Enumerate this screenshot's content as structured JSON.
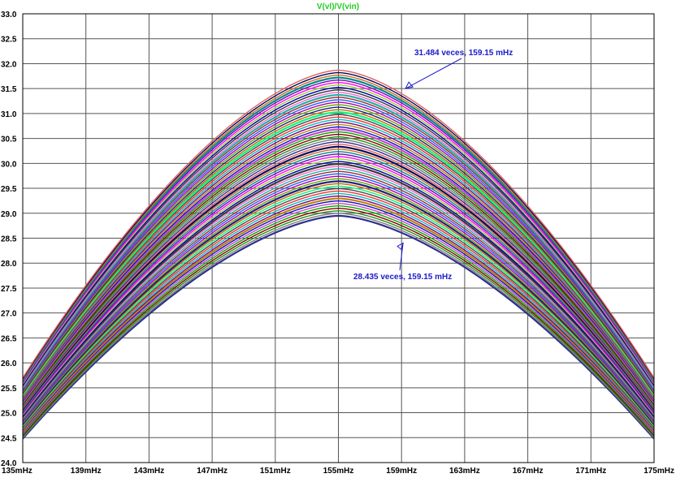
{
  "chart_data": {
    "type": "line",
    "title": "V(vl)/V(vin)",
    "x_unit": "mHz",
    "xlim": [
      135,
      175
    ],
    "ylim": [
      24.0,
      33.0
    ],
    "x_tick_labels": [
      "135mHz",
      "139mHz",
      "143mHz",
      "147mHz",
      "151mHz",
      "155mHz",
      "159mHz",
      "163mHz",
      "167mHz",
      "171mHz",
      "175mHz"
    ],
    "y_tick_labels": [
      "24.0",
      "24.5",
      "25.0",
      "25.5",
      "26.0",
      "26.5",
      "27.0",
      "27.5",
      "28.0",
      "28.5",
      "29.0",
      "29.5",
      "30.0",
      "30.5",
      "31.0",
      "31.5",
      "32.0",
      "32.5",
      "33.0"
    ],
    "grid": true,
    "series_shape": {
      "peak_x": 155,
      "peak_min": 28.95,
      "peak_max": 31.87,
      "value_at_135_for_max": 25.7,
      "value_at_135_for_min": 24.48,
      "count": 60
    },
    "series_colors": [
      "#2f2f8f",
      "#7a7a7a",
      "#1f8f1f",
      "#8b0000",
      "#00aa00",
      "#cc44cc",
      "#1010cc",
      "#b8860b",
      "#800080",
      "#00c0c0",
      "#ff3030",
      "#4b4b4b",
      "#00ff80",
      "#cc6600",
      "#202080",
      "#66aa00",
      "#b000b0",
      "#2060ff",
      "#a52a2a",
      "#20b2aa",
      "#ff66cc",
      "#3a3a3a",
      "#0000aa",
      "#9acd32",
      "#ff00ff",
      "#6a0dad",
      "#008b8b",
      "#d2691e",
      "#0a0a60",
      "#e06060"
    ],
    "annotations": [
      {
        "text": "31.484 veces, 159.15 mHz",
        "color": "#1a1acc",
        "point_x": 159.15,
        "point_y": 31.484
      },
      {
        "text": "28.435 veces, 159.15 mHz",
        "color": "#1a1acc",
        "point_x": 159.15,
        "point_y": 28.435
      }
    ],
    "title_color": "#22cc22"
  }
}
